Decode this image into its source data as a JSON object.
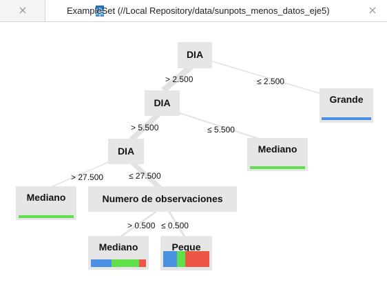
{
  "tabs": [
    {
      "label": "",
      "close_icon": "×"
    },
    {
      "label": "ExampleSet (//Local Repository/data/sunpots_menos_datos_eje5)",
      "close_icon": "×"
    }
  ],
  "colors": {
    "node_bg": "#e6e6e6",
    "class_grande": "#4a90e2",
    "class_mediano": "#5fe04a",
    "class_peque": "#ee5544",
    "edge": "#e2e2e2"
  },
  "tree": {
    "root": {
      "label": "DIA"
    },
    "edges": [
      {
        "condition": "> 2.500"
      },
      {
        "condition": "≤ 2.500"
      },
      {
        "condition": "> 5.500"
      },
      {
        "condition": "≤ 5.500"
      },
      {
        "condition": "> 27.500"
      },
      {
        "condition": "≤ 27.500"
      },
      {
        "condition": "> 0.500"
      },
      {
        "condition": "≤ 0.500"
      }
    ],
    "inner": [
      {
        "label": "DIA"
      },
      {
        "label": "DIA"
      },
      {
        "label": "Numero de observaciones"
      }
    ],
    "leaves": [
      {
        "label": "Grande",
        "dist": [
          {
            "cls": "Grande",
            "frac": 1.0
          }
        ]
      },
      {
        "label": "Mediano",
        "dist": [
          {
            "cls": "Mediano",
            "frac": 1.0
          }
        ]
      },
      {
        "label": "Mediano",
        "dist": [
          {
            "cls": "Mediano",
            "frac": 1.0
          }
        ]
      },
      {
        "label": "Mediano",
        "dist": [
          {
            "cls": "Grande",
            "frac": 0.37
          },
          {
            "cls": "Mediano",
            "frac": 0.5
          },
          {
            "cls": "Peque",
            "frac": 0.13
          }
        ]
      },
      {
        "label": "Peque",
        "dist": [
          {
            "cls": "Grande",
            "frac": 0.3
          },
          {
            "cls": "Mediano",
            "frac": 0.18
          },
          {
            "cls": "Peque",
            "frac": 0.52
          }
        ]
      }
    ]
  }
}
